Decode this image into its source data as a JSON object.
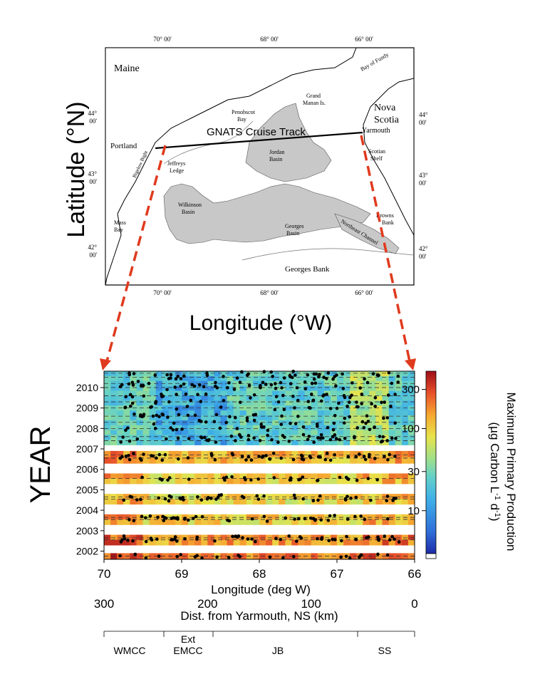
{
  "map": {
    "lon_ticks": [
      "70° 00'",
      "68° 00'",
      "66° 00'"
    ],
    "lat_ticks_left": [
      "44°\n00'",
      "43°\n00'",
      "42°\n00'"
    ],
    "lat_ticks_right": [
      "44°\n00'",
      "43°\n00'",
      "42°\n00'"
    ],
    "places": [
      "Maine",
      "Nova",
      "Scotia",
      "Yarmouth",
      "Portland",
      "Bay of Fundy",
      "Grand",
      "Manan Is.",
      "Penobscot",
      "Bay",
      "Jeffreys",
      "Ledge",
      "Bigelow Bight",
      "Jordan",
      "Basin",
      "Wilkinson",
      "Basin",
      "Georges",
      "Basin",
      "Scotian",
      "Shelf",
      "Browns",
      "Bank",
      "Mass",
      "Bay",
      "Northeast Channel",
      "Georges Bank"
    ],
    "track_label": "GNATS Cruise Track",
    "ylabel": "Latitude (°N)",
    "xlabel": "Longitude (°W)"
  },
  "chart_data": {
    "type": "heatmap",
    "title": "",
    "ylabel": "YEAR",
    "xlabel": "Longitude (deg W)",
    "xlim": [
      70,
      66
    ],
    "x_ticks": [
      "70",
      "69",
      "68",
      "67",
      "66"
    ],
    "y_ticks": [
      "2002",
      "2003",
      "2004",
      "2005",
      "2006",
      "2007",
      "2008",
      "2009",
      "2010"
    ],
    "ylim": [
      2001.6,
      2010.8
    ],
    "secondary_xlabel": "Dist. from Yarmouth, NS (km)",
    "secondary_x_ticks": [
      "300",
      "200",
      "100",
      "0"
    ],
    "regions": [
      "WMCC",
      "Ext",
      "EMCC",
      "JB",
      "SS"
    ],
    "colorbar": {
      "label_line1": "Maximum Primary Production",
      "label_line2": "(µg Carbon L",
      "label_sup1": "-1",
      "label_mid": " d",
      "label_sup2": "-1",
      "label_end": ")",
      "ticks": [
        "300",
        "100",
        "30",
        "10"
      ],
      "scale": "log",
      "colors": [
        "#1e2aa8",
        "#2f6fd8",
        "#3fb0e8",
        "#63d0c8",
        "#9fe08a",
        "#e8e34a",
        "#f6a830",
        "#e8502a",
        "#a00e18"
      ]
    },
    "bands": [
      {
        "year_from": 2001.6,
        "year_to": 2001.9,
        "dominant": "high",
        "mean_mgC": 180
      },
      {
        "year_from": 2002.3,
        "year_to": 2002.8,
        "dominant": "high",
        "mean_mgC": 150
      },
      {
        "year_from": 2003.3,
        "year_to": 2003.8,
        "dominant": "moderate",
        "mean_mgC": 90
      },
      {
        "year_from": 2004.3,
        "year_to": 2004.8,
        "dominant": "moderate",
        "mean_mgC": 80
      },
      {
        "year_from": 2005.3,
        "year_to": 2005.8,
        "dominant": "moderate",
        "mean_mgC": 90
      },
      {
        "year_from": 2006.3,
        "year_to": 2006.9,
        "dominant": "moderate-high",
        "mean_mgC": 110
      },
      {
        "year_from": 2007.2,
        "year_to": 2010.8,
        "dominant": "low",
        "mean_mgC": 20
      }
    ],
    "sample_years": [
      2001.75,
      2002.55,
      2002.65,
      2003.55,
      2003.65,
      2004.55,
      2004.65,
      2005.55,
      2006.55,
      2006.7,
      2007.4,
      2007.6,
      2008.0,
      2008.3,
      2008.6,
      2009.0,
      2009.3,
      2009.6,
      2010.0,
      2010.2,
      2010.5,
      2010.7
    ]
  }
}
